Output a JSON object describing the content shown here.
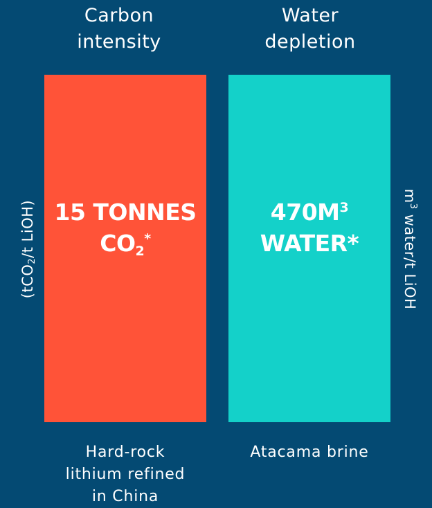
{
  "chart_data": {
    "type": "bar",
    "panels": [
      {
        "title_lines": [
          "Carbon",
          "intensity"
        ],
        "unit": {
          "prefix": "(tCO",
          "sub": "2",
          "suffix": "/t LiOH)"
        },
        "category_lines": [
          "Hard-rock",
          "lithium refined",
          "in China"
        ],
        "value": 15,
        "label": {
          "line1": "15 TONNES",
          "line2_main": "CO",
          "line2_sub": "2",
          "line2_sup": "*"
        },
        "color": "#ff5338"
      },
      {
        "title_lines": [
          "Water",
          "depletion"
        ],
        "unit": {
          "prefix": "m",
          "sup": "3",
          "suffix": " water/t LiOH"
        },
        "category_lines": [
          "Atacama brine"
        ],
        "value": 470,
        "label": {
          "line1_main": "470M",
          "line1_sup": "3",
          "line2": "WATER*"
        },
        "color": "#14d1c9"
      }
    ]
  },
  "background_color": "#044a73"
}
